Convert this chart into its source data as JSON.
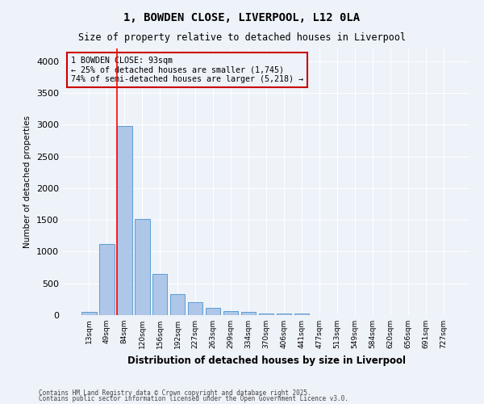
{
  "title": "1, BOWDEN CLOSE, LIVERPOOL, L12 0LA",
  "subtitle": "Size of property relative to detached houses in Liverpool",
  "xlabel": "Distribution of detached houses by size in Liverpool",
  "ylabel": "Number of detached properties",
  "footnote1": "Contains HM Land Registry data © Crown copyright and database right 2025.",
  "footnote2": "Contains public sector information licensed under the Open Government Licence v3.0.",
  "annotation_line1": "1 BOWDEN CLOSE: 93sqm",
  "annotation_line2": "← 25% of detached houses are smaller (1,745)",
  "annotation_line3": "74% of semi-detached houses are larger (5,218) →",
  "bar_color": "#aec6e8",
  "bar_edge_color": "#5a9fd4",
  "categories": [
    "13sqm",
    "49sqm",
    "84sqm",
    "120sqm",
    "156sqm",
    "192sqm",
    "227sqm",
    "263sqm",
    "299sqm",
    "334sqm",
    "370sqm",
    "406sqm",
    "441sqm",
    "477sqm",
    "513sqm",
    "549sqm",
    "584sqm",
    "620sqm",
    "656sqm",
    "691sqm",
    "727sqm"
  ],
  "values": [
    50,
    1120,
    2980,
    1520,
    650,
    330,
    210,
    120,
    70,
    55,
    30,
    25,
    20,
    5,
    5,
    5,
    5,
    5,
    5,
    5,
    5
  ],
  "ylim": [
    0,
    4200
  ],
  "yticks": [
    0,
    500,
    1000,
    1500,
    2000,
    2500,
    3000,
    3500,
    4000
  ],
  "bg_color": "#eef2f9",
  "grid_color": "#ffffff",
  "annotation_box_color": "#cc0000",
  "red_line_index": 2
}
